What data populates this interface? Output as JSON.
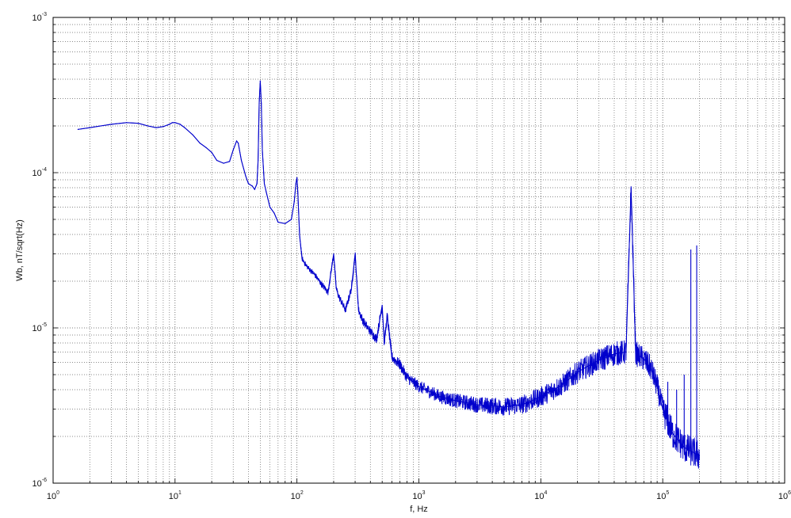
{
  "chart_data": {
    "type": "line",
    "title": "",
    "xlabel": "f, Hz",
    "ylabel": "Wb, nT/sqrt(Hz)",
    "x_scale": "log",
    "y_scale": "log",
    "xlim": [
      1,
      1000000
    ],
    "ylim": [
      1e-06,
      0.001
    ],
    "grid": true,
    "grid_style": "dotted",
    "legend": "none",
    "x_tick_labels": [
      {
        "base": "10",
        "exp": "0"
      },
      {
        "base": "10",
        "exp": "1"
      },
      {
        "base": "10",
        "exp": "2"
      },
      {
        "base": "10",
        "exp": "3"
      },
      {
        "base": "10",
        "exp": "4"
      },
      {
        "base": "10",
        "exp": "5"
      },
      {
        "base": "10",
        "exp": "6"
      }
    ],
    "y_tick_labels": [
      {
        "base": "10",
        "exp": "-6"
      },
      {
        "base": "10",
        "exp": "-5"
      },
      {
        "base": "10",
        "exp": "-4"
      },
      {
        "base": "10",
        "exp": "-3"
      }
    ],
    "series": [
      {
        "color": "#0000cc",
        "x": [
          1.6,
          2,
          3,
          4,
          5,
          6,
          7,
          8,
          9,
          9.5,
          10,
          11,
          12,
          14,
          16,
          18,
          20,
          22,
          25,
          28,
          30,
          32,
          33,
          35,
          38,
          40,
          43,
          45,
          47,
          48,
          49,
          50,
          51,
          52,
          54,
          56,
          60,
          65,
          70,
          80,
          90,
          95,
          98,
          100,
          102,
          105,
          110,
          120,
          140,
          160,
          180,
          200,
          210,
          220,
          250,
          280,
          300,
          320,
          350,
          400,
          450,
          500,
          520,
          550,
          600,
          700,
          800,
          1000,
          1500,
          2000,
          3000,
          5000,
          7000,
          10000,
          15000,
          20000,
          30000,
          40000,
          50000,
          55000,
          60000,
          70000,
          80000,
          90000,
          100000,
          120000,
          150000,
          200000
        ],
        "y": [
          0.00019,
          0.000195,
          0.000205,
          0.00021,
          0.000208,
          0.0002,
          0.000195,
          0.000198,
          0.000205,
          0.00021,
          0.00021,
          0.000205,
          0.000195,
          0.000175,
          0.000155,
          0.000145,
          0.000135,
          0.00012,
          0.000115,
          0.000118,
          0.00014,
          0.00016,
          0.000155,
          0.00012,
          9.5e-05,
          8.5e-05,
          8.2e-05,
          7.8e-05,
          8.5e-05,
          0.00012,
          0.00028,
          0.00039,
          0.00028,
          0.00014,
          8.5e-05,
          7.5e-05,
          6e-05,
          5.5e-05,
          4.8e-05,
          4.7e-05,
          5e-05,
          6.5e-05,
          8.5e-05,
          9.3e-05,
          7e-05,
          4e-05,
          2.8e-05,
          2.5e-05,
          2.2e-05,
          1.9e-05,
          1.7e-05,
          3e-05,
          1.8e-05,
          1.6e-05,
          1.3e-05,
          1.8e-05,
          3e-05,
          1.3e-05,
          1.1e-05,
          9.5e-06,
          8.5e-06,
          1.4e-05,
          8e-06,
          1.2e-05,
          6.5e-06,
          5.8e-06,
          4.8e-06,
          4.2e-06,
          3.6e-06,
          3.4e-06,
          3.2e-06,
          3.1e-06,
          3.2e-06,
          3.6e-06,
          4.3e-06,
          5.2e-06,
          6.2e-06,
          6.8e-06,
          7e-06,
          8e-05,
          6.8e-06,
          6.3e-06,
          5.5e-06,
          4.2e-06,
          3e-06,
          2.1e-06,
          1.7e-06,
          1.5e-06
        ],
        "spikes": [
          {
            "x": 110000,
            "y": 4.5e-06
          },
          {
            "x": 130000,
            "y": 4e-06
          },
          {
            "x": 150000,
            "y": 5e-06
          },
          {
            "x": 170000,
            "y": 3.2e-05
          },
          {
            "x": 190000,
            "y": 3.4e-05
          }
        ]
      }
    ]
  }
}
